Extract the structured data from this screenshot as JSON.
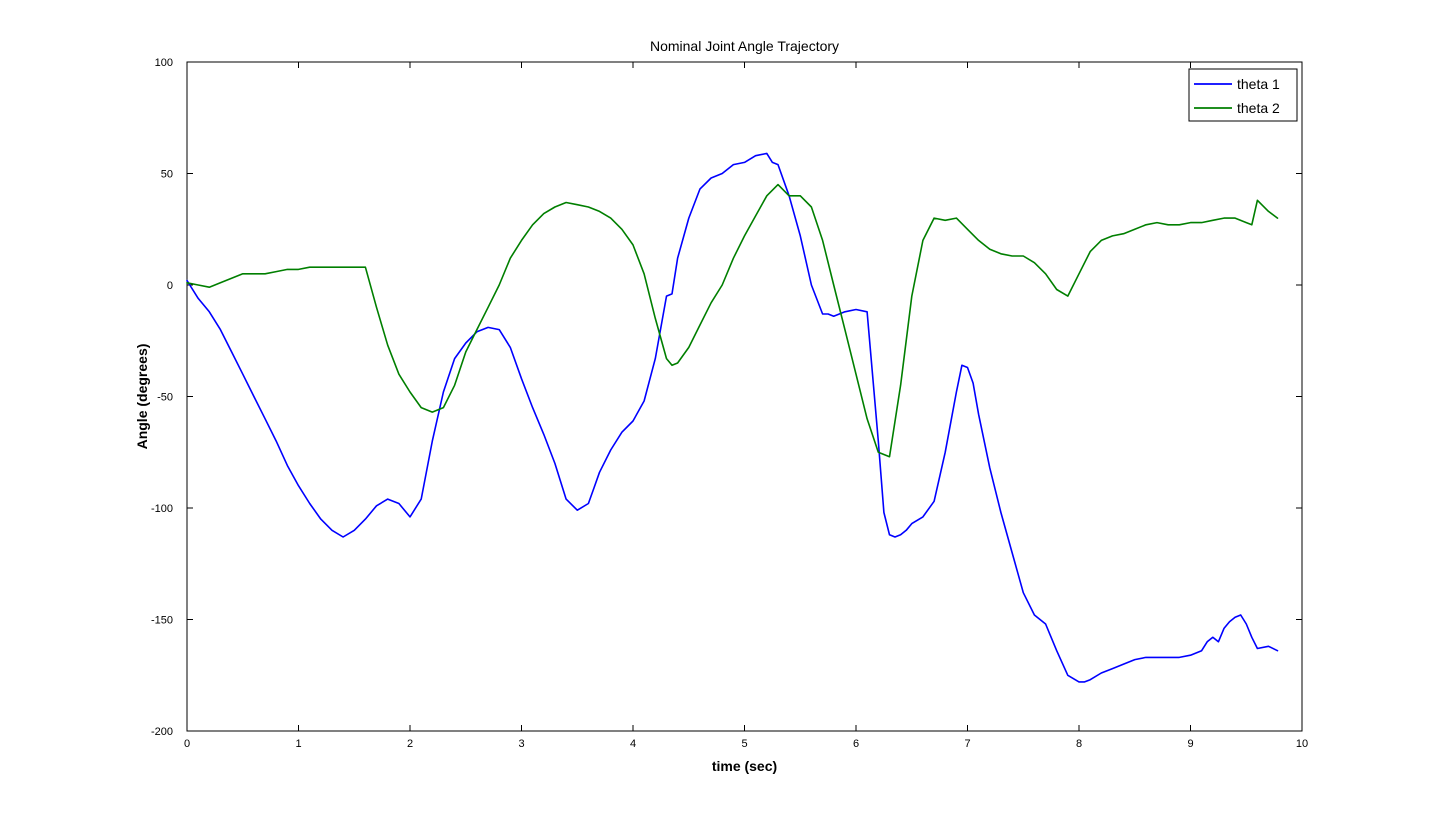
{
  "chart_data": {
    "type": "line",
    "title": "Nominal Joint Angle Trajectory",
    "xlabel": "time (sec)",
    "ylabel": "Angle (degrees)",
    "xlim": [
      0,
      10
    ],
    "ylim": [
      -200,
      100
    ],
    "xticks": [
      0,
      1,
      2,
      3,
      4,
      5,
      6,
      7,
      8,
      9,
      10
    ],
    "yticks": [
      -200,
      -150,
      -100,
      -50,
      0,
      50,
      100
    ],
    "xtick_labels": [
      "0",
      "1",
      "2",
      "3",
      "4",
      "5",
      "6",
      "7",
      "8",
      "9",
      "10"
    ],
    "ytick_labels": [
      "-200",
      "-150",
      "-100",
      "-50",
      "0",
      "50",
      "100"
    ],
    "grid": false,
    "legend": "top-right",
    "series": [
      {
        "name": "theta 1",
        "color": "#0000ff",
        "x": [
          0,
          0.1,
          0.2,
          0.3,
          0.4,
          0.5,
          0.6,
          0.7,
          0.8,
          0.9,
          1.0,
          1.1,
          1.2,
          1.3,
          1.4,
          1.5,
          1.6,
          1.7,
          1.8,
          1.9,
          2.0,
          2.1,
          2.2,
          2.3,
          2.4,
          2.5,
          2.6,
          2.7,
          2.8,
          2.9,
          3.0,
          3.1,
          3.2,
          3.3,
          3.4,
          3.5,
          3.6,
          3.65,
          3.7,
          3.8,
          3.9,
          4.0,
          4.1,
          4.2,
          4.3,
          4.35,
          4.4,
          4.5,
          4.6,
          4.7,
          4.8,
          4.9,
          5.0,
          5.1,
          5.2,
          5.25,
          5.3,
          5.4,
          5.5,
          5.6,
          5.7,
          5.75,
          5.8,
          5.9,
          6.0,
          6.1,
          6.2,
          6.25,
          6.3,
          6.35,
          6.4,
          6.45,
          6.5,
          6.6,
          6.7,
          6.8,
          6.9,
          6.95,
          7.0,
          7.05,
          7.1,
          7.2,
          7.3,
          7.4,
          7.5,
          7.6,
          7.7,
          7.8,
          7.9,
          8.0,
          8.05,
          8.1,
          8.2,
          8.3,
          8.4,
          8.5,
          8.6,
          8.7,
          8.8,
          8.9,
          9.0,
          9.1,
          9.15,
          9.2,
          9.25,
          9.3,
          9.35,
          9.4,
          9.45,
          9.5,
          9.55,
          9.6,
          9.7,
          9.78
        ],
        "y": [
          2,
          -6,
          -12,
          -20,
          -30,
          -40,
          -50,
          -60,
          -70,
          -81,
          -90,
          -98,
          -105,
          -110,
          -113,
          -110,
          -105,
          -99,
          -96,
          -98,
          -104,
          -96,
          -70,
          -48,
          -33,
          -26,
          -21,
          -19,
          -20,
          -28,
          -42,
          -55,
          -67,
          -80,
          -96,
          -101,
          -98,
          -91,
          -84,
          -74,
          -66,
          -61,
          -52,
          -33,
          -5,
          -4,
          12,
          30,
          43,
          48,
          50,
          54,
          55,
          58,
          59,
          55,
          54,
          40,
          22,
          0,
          -13,
          -13,
          -14,
          -12,
          -11,
          -12,
          -70,
          -102,
          -112,
          -113,
          -112,
          -110,
          -107,
          -104,
          -97,
          -75,
          -48,
          -36,
          -37,
          -44,
          -58,
          -82,
          -102,
          -120,
          -138,
          -148,
          -152,
          -164,
          -175,
          -178,
          -178,
          -177,
          -174,
          -172,
          -170,
          -168,
          -167,
          -167,
          -167,
          -167,
          -166,
          -164,
          -160,
          -158,
          -160,
          -154,
          -151,
          -149,
          -148,
          -152,
          -158,
          -163,
          -162,
          -164
        ]
      },
      {
        "name": "theta 2",
        "color": "#007f00",
        "x": [
          0,
          0.1,
          0.2,
          0.3,
          0.4,
          0.5,
          0.6,
          0.7,
          0.8,
          0.9,
          1.0,
          1.1,
          1.2,
          1.3,
          1.4,
          1.5,
          1.6,
          1.7,
          1.8,
          1.9,
          2.0,
          2.1,
          2.2,
          2.3,
          2.4,
          2.5,
          2.6,
          2.7,
          2.8,
          2.9,
          3.0,
          3.1,
          3.2,
          3.3,
          3.4,
          3.5,
          3.6,
          3.7,
          3.8,
          3.9,
          4.0,
          4.1,
          4.2,
          4.3,
          4.35,
          4.4,
          4.5,
          4.6,
          4.7,
          4.8,
          4.9,
          5.0,
          5.1,
          5.2,
          5.3,
          5.4,
          5.5,
          5.6,
          5.7,
          5.8,
          5.9,
          6.0,
          6.1,
          6.2,
          6.3,
          6.4,
          6.5,
          6.6,
          6.7,
          6.8,
          6.9,
          7.0,
          7.1,
          7.2,
          7.3,
          7.4,
          7.5,
          7.6,
          7.7,
          7.8,
          7.9,
          8.0,
          8.1,
          8.2,
          8.3,
          8.4,
          8.5,
          8.6,
          8.7,
          8.8,
          8.9,
          9.0,
          9.1,
          9.2,
          9.3,
          9.4,
          9.5,
          9.55,
          9.6,
          9.7,
          9.78
        ],
        "y": [
          1,
          0,
          -1,
          1,
          3,
          5,
          5,
          5,
          6,
          7,
          7,
          8,
          8,
          8,
          8,
          8,
          8,
          -10,
          -27,
          -40,
          -48,
          -55,
          -57,
          -55,
          -45,
          -30,
          -20,
          -10,
          0,
          12,
          20,
          27,
          32,
          35,
          37,
          36,
          35,
          33,
          30,
          25,
          18,
          5,
          -15,
          -33,
          -36,
          -35,
          -28,
          -18,
          -8,
          0,
          12,
          22,
          31,
          40,
          45,
          40,
          40,
          35,
          20,
          0,
          -20,
          -40,
          -60,
          -75,
          -77,
          -45,
          -5,
          20,
          30,
          29,
          30,
          25,
          20,
          16,
          14,
          13,
          13,
          10,
          5,
          -2,
          -5,
          5,
          15,
          20,
          22,
          23,
          25,
          27,
          28,
          27,
          27,
          28,
          28,
          29,
          30,
          30,
          28,
          27,
          38,
          33,
          30
        ]
      }
    ]
  }
}
